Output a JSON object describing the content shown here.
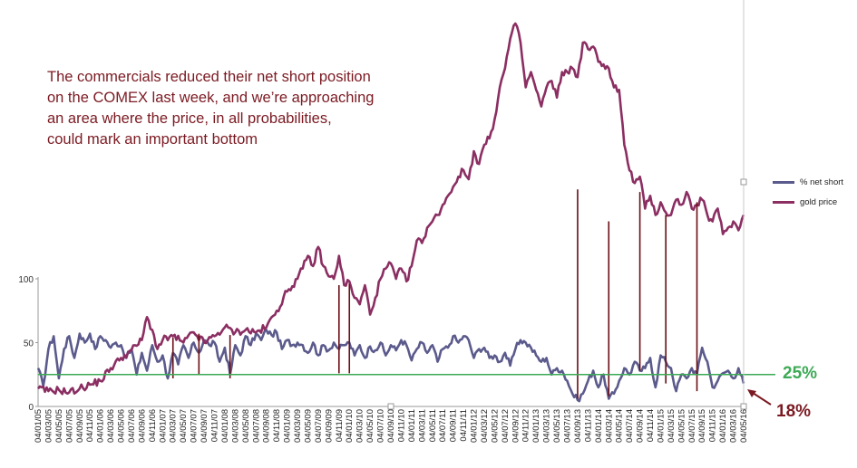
{
  "annotation": {
    "lines": [
      "The commercials reduced their net short position",
      "on the COMEX last week, and we’re approaching",
      "an area where the price, in all probabilities,",
      "could mark an important bottom"
    ]
  },
  "levels": {
    "threshold_label": "25%",
    "current_label": "18%",
    "threshold_color": "#3daa55",
    "current_color": "#7b1a22"
  },
  "chart_data": {
    "type": "line",
    "x_tick_labels": [
      "04/01/05",
      "04/03/05",
      "04/05/05",
      "04/07/05",
      "04/09/05",
      "04/11/05",
      "04/01/06",
      "04/03/06",
      "04/05/06",
      "04/07/06",
      "04/09/06",
      "04/11/06",
      "04/01/07",
      "04/03/07",
      "04/05/07",
      "04/07/07",
      "04/09/07",
      "04/11/07",
      "04/01/08",
      "04/03/08",
      "04/05/08",
      "04/07/08",
      "04/09/08",
      "04/11/08",
      "04/01/09",
      "04/03/09",
      "04/05/09",
      "04/07/09",
      "04/09/09",
      "04/11/09",
      "04/01/10",
      "04/03/10",
      "04/05/10",
      "04/07/10",
      "04/09/10",
      "04/11/10",
      "04/01/11",
      "04/03/11",
      "04/05/11",
      "04/07/11",
      "04/09/11",
      "04/11/11",
      "04/01/12",
      "04/03/12",
      "04/05/12",
      "04/07/12",
      "04/09/12",
      "04/11/12",
      "04/01/13",
      "04/03/13",
      "04/05/13",
      "04/07/13",
      "04/09/13",
      "04/11/13",
      "04/01/14",
      "04/03/14",
      "04/05/14",
      "04/07/14",
      "04/09/14",
      "04/11/14",
      "04/01/15",
      "04/03/15",
      "04/05/15",
      "04/07/15",
      "04/09/15",
      "04/11/15",
      "04/01/16",
      "04/03/16",
      "04/05/16"
    ],
    "y_ticks": [
      0,
      50,
      100
    ],
    "ylim": [
      0,
      100
    ],
    "threshold": 25,
    "series": [
      {
        "name": "% net short",
        "color": "#5b5a8c",
        "anchors": [
          [
            0,
            30
          ],
          [
            1,
            16
          ],
          [
            2,
            45
          ],
          [
            3,
            55
          ],
          [
            4,
            22
          ],
          [
            5,
            45
          ],
          [
            6,
            55
          ],
          [
            7,
            38
          ],
          [
            8,
            57
          ],
          [
            9,
            50
          ],
          [
            10,
            57
          ],
          [
            11,
            45
          ],
          [
            12,
            55
          ],
          [
            13,
            52
          ],
          [
            14,
            46
          ],
          [
            15,
            50
          ],
          [
            16,
            48
          ],
          [
            17,
            38
          ],
          [
            18,
            45
          ],
          [
            19,
            25
          ],
          [
            20,
            42
          ],
          [
            21,
            28
          ],
          [
            22,
            48
          ],
          [
            23,
            35
          ],
          [
            24,
            40
          ],
          [
            25,
            22
          ],
          [
            26,
            42
          ],
          [
            27,
            33
          ],
          [
            28,
            48
          ],
          [
            29,
            38
          ],
          [
            30,
            50
          ],
          [
            31,
            42
          ],
          [
            32,
            52
          ],
          [
            33,
            48
          ],
          [
            34,
            50
          ],
          [
            35,
            35
          ],
          [
            36,
            46
          ],
          [
            37,
            25
          ],
          [
            38,
            48
          ],
          [
            39,
            40
          ],
          [
            40,
            55
          ],
          [
            41,
            48
          ],
          [
            42,
            57
          ],
          [
            43,
            52
          ],
          [
            44,
            60
          ],
          [
            45,
            56
          ],
          [
            46,
            58
          ],
          [
            47,
            45
          ],
          [
            48,
            52
          ],
          [
            49,
            48
          ],
          [
            50,
            50
          ],
          [
            51,
            48
          ],
          [
            52,
            42
          ],
          [
            53,
            50
          ],
          [
            54,
            40
          ],
          [
            55,
            48
          ],
          [
            56,
            44
          ],
          [
            57,
            50
          ],
          [
            58,
            45
          ],
          [
            59,
            48
          ],
          [
            60,
            50
          ],
          [
            61,
            40
          ],
          [
            62,
            48
          ],
          [
            63,
            38
          ],
          [
            64,
            47
          ],
          [
            65,
            44
          ],
          [
            66,
            50
          ],
          [
            67,
            40
          ],
          [
            68,
            48
          ],
          [
            69,
            44
          ],
          [
            70,
            52
          ],
          [
            71,
            48
          ],
          [
            72,
            36
          ],
          [
            73,
            45
          ],
          [
            74,
            50
          ],
          [
            75,
            42
          ],
          [
            76,
            48
          ],
          [
            77,
            35
          ],
          [
            78,
            45
          ],
          [
            79,
            46
          ],
          [
            80,
            55
          ],
          [
            81,
            50
          ],
          [
            82,
            55
          ],
          [
            83,
            52
          ],
          [
            84,
            38
          ],
          [
            85,
            45
          ],
          [
            86,
            46
          ],
          [
            87,
            38
          ],
          [
            88,
            40
          ],
          [
            89,
            35
          ],
          [
            90,
            42
          ],
          [
            91,
            32
          ],
          [
            92,
            45
          ],
          [
            93,
            52
          ],
          [
            94,
            50
          ],
          [
            95,
            46
          ],
          [
            96,
            40
          ],
          [
            97,
            35
          ],
          [
            98,
            38
          ],
          [
            99,
            25
          ],
          [
            100,
            30
          ],
          [
            101,
            28
          ],
          [
            102,
            20
          ],
          [
            103,
            10
          ],
          [
            104,
            5
          ],
          [
            105,
            10
          ],
          [
            106,
            20
          ],
          [
            107,
            28
          ],
          [
            108,
            15
          ],
          [
            109,
            25
          ],
          [
            110,
            6
          ],
          [
            111,
            10
          ],
          [
            112,
            20
          ],
          [
            113,
            30
          ],
          [
            114,
            25
          ],
          [
            115,
            35
          ],
          [
            116,
            28
          ],
          [
            117,
            30
          ],
          [
            118,
            38
          ],
          [
            119,
            15
          ],
          [
            120,
            40
          ],
          [
            121,
            35
          ],
          [
            122,
            30
          ],
          [
            123,
            12
          ],
          [
            124,
            25
          ],
          [
            125,
            22
          ],
          [
            126,
            30
          ],
          [
            127,
            25
          ],
          [
            128,
            46
          ],
          [
            129,
            35
          ],
          [
            130,
            15
          ],
          [
            131,
            20
          ],
          [
            132,
            26
          ],
          [
            133,
            28
          ],
          [
            134,
            22
          ],
          [
            135,
            30
          ],
          [
            136,
            18
          ]
        ]
      },
      {
        "name": "gold price",
        "color": "#8b2e62",
        "anchors": [
          [
            0,
            14
          ],
          [
            2,
            12
          ],
          [
            4,
            13
          ],
          [
            6,
            11
          ],
          [
            8,
            14
          ],
          [
            10,
            17
          ],
          [
            12,
            20
          ],
          [
            14,
            30
          ],
          [
            16,
            38
          ],
          [
            18,
            44
          ],
          [
            20,
            52
          ],
          [
            21,
            70
          ],
          [
            22,
            60
          ],
          [
            23,
            45
          ],
          [
            24,
            52
          ],
          [
            26,
            55
          ],
          [
            28,
            50
          ],
          [
            30,
            58
          ],
          [
            32,
            50
          ],
          [
            34,
            55
          ],
          [
            36,
            62
          ],
          [
            38,
            58
          ],
          [
            40,
            60
          ],
          [
            42,
            58
          ],
          [
            44,
            62
          ],
          [
            46,
            75
          ],
          [
            48,
            90
          ],
          [
            50,
            100
          ],
          [
            51,
            108
          ],
          [
            52,
            118
          ],
          [
            53,
            110
          ],
          [
            54,
            125
          ],
          [
            55,
            110
          ],
          [
            56,
            102
          ],
          [
            57,
            100
          ],
          [
            58,
            118
          ],
          [
            59,
            95
          ],
          [
            60,
            98
          ],
          [
            61,
            85
          ],
          [
            62,
            80
          ],
          [
            63,
            95
          ],
          [
            64,
            72
          ],
          [
            65,
            85
          ],
          [
            66,
            100
          ],
          [
            67,
            108
          ],
          [
            68,
            112
          ],
          [
            69,
            100
          ],
          [
            70,
            108
          ],
          [
            71,
            98
          ],
          [
            72,
            110
          ],
          [
            73,
            130
          ],
          [
            74,
            128
          ],
          [
            75,
            140
          ],
          [
            76,
            145
          ],
          [
            77,
            150
          ],
          [
            78,
            158
          ],
          [
            79,
            165
          ],
          [
            80,
            172
          ],
          [
            81,
            180
          ],
          [
            82,
            185
          ],
          [
            83,
            178
          ],
          [
            84,
            200
          ],
          [
            85,
            190
          ],
          [
            86,
            205
          ],
          [
            87,
            210
          ],
          [
            88,
            225
          ],
          [
            89,
            250
          ],
          [
            90,
            265
          ],
          [
            91,
            288
          ],
          [
            92,
            300
          ],
          [
            93,
            285
          ],
          [
            94,
            250
          ],
          [
            95,
            262
          ],
          [
            96,
            248
          ],
          [
            97,
            235
          ],
          [
            98,
            250
          ],
          [
            99,
            255
          ],
          [
            100,
            242
          ],
          [
            101,
            262
          ],
          [
            102,
            262
          ],
          [
            103,
            265
          ],
          [
            104,
            258
          ],
          [
            105,
            285
          ],
          [
            106,
            280
          ],
          [
            107,
            282
          ],
          [
            108,
            270
          ],
          [
            109,
            268
          ],
          [
            110,
            265
          ],
          [
            111,
            250
          ],
          [
            112,
            248
          ],
          [
            113,
            205
          ],
          [
            114,
            185
          ],
          [
            115,
            175
          ],
          [
            116,
            180
          ],
          [
            117,
            155
          ],
          [
            118,
            165
          ],
          [
            119,
            150
          ],
          [
            120,
            160
          ],
          [
            121,
            152
          ],
          [
            122,
            150
          ],
          [
            123,
            162
          ],
          [
            124,
            158
          ],
          [
            125,
            168
          ],
          [
            126,
            155
          ],
          [
            127,
            158
          ],
          [
            128,
            162
          ],
          [
            129,
            150
          ],
          [
            130,
            145
          ],
          [
            131,
            155
          ],
          [
            132,
            135
          ],
          [
            133,
            140
          ],
          [
            134,
            145
          ],
          [
            135,
            138
          ],
          [
            136,
            150
          ]
        ]
      }
    ],
    "vertical_markers": [
      {
        "index": 26,
        "net_short": 22,
        "gold": 54
      },
      {
        "index": 31,
        "net_short": 25,
        "gold": 57
      },
      {
        "index": 37,
        "net_short": 22,
        "gold": 56
      },
      {
        "index": 58,
        "net_short": 26,
        "gold": 95
      },
      {
        "index": 60,
        "net_short": 26,
        "gold": 96
      },
      {
        "index": 104,
        "net_short": 6,
        "gold": 170
      },
      {
        "index": 110,
        "net_short": 8,
        "gold": 145
      },
      {
        "index": 116,
        "net_short": 28,
        "gold": 168
      },
      {
        "index": 121,
        "net_short": 18,
        "gold": 150
      },
      {
        "index": 127,
        "net_short": 12,
        "gold": 160
      }
    ]
  }
}
